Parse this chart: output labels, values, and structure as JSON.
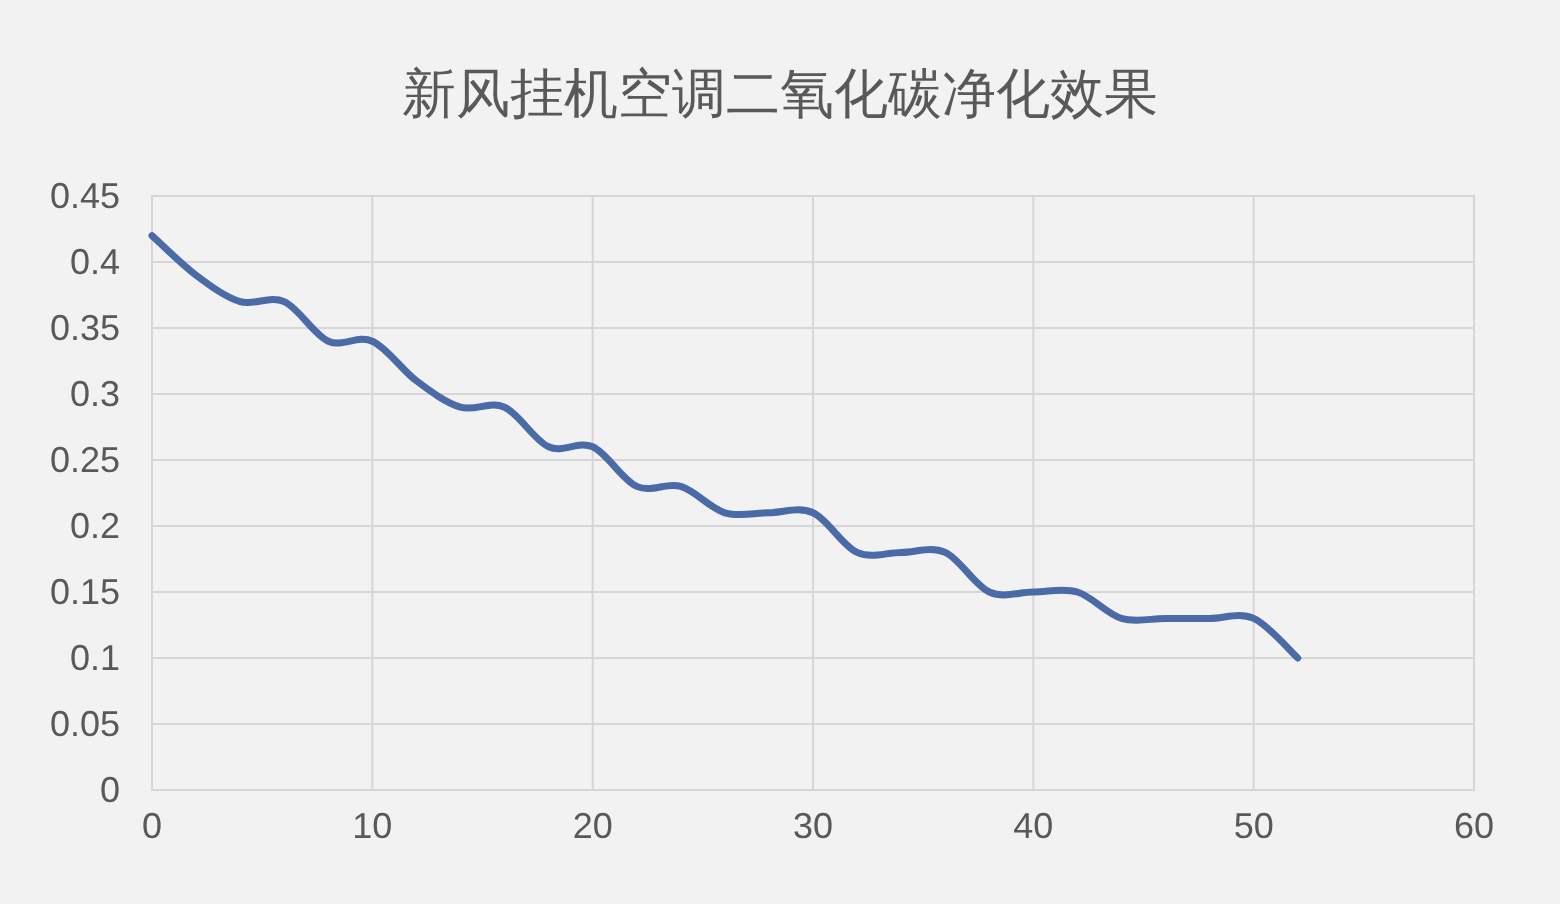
{
  "chart_data": {
    "type": "line",
    "title": "新风挂机空调二氧化碳净化效果",
    "x": [
      0,
      2,
      4,
      6,
      8,
      10,
      12,
      14,
      16,
      18,
      20,
      22,
      24,
      26,
      28,
      30,
      32,
      34,
      36,
      38,
      40,
      42,
      44,
      46,
      48,
      50,
      52
    ],
    "series": [
      {
        "color": "#4a6aa8",
        "values": [
          0.42,
          0.39,
          0.37,
          0.37,
          0.34,
          0.34,
          0.31,
          0.29,
          0.29,
          0.26,
          0.26,
          0.23,
          0.23,
          0.21,
          0.21,
          0.21,
          0.18,
          0.18,
          0.18,
          0.15,
          0.15,
          0.15,
          0.13,
          0.13,
          0.13,
          0.13,
          0.1
        ]
      }
    ],
    "xlim": [
      0,
      60
    ],
    "xticks": [
      0,
      10,
      20,
      30,
      40,
      50,
      60
    ],
    "ylim": [
      0,
      0.45
    ],
    "yticks": [
      0,
      0.05,
      0.1,
      0.15,
      0.2,
      0.25,
      0.3,
      0.35,
      0.4,
      0.45
    ],
    "grid": true,
    "marker": "none",
    "line_style": "solid"
  }
}
